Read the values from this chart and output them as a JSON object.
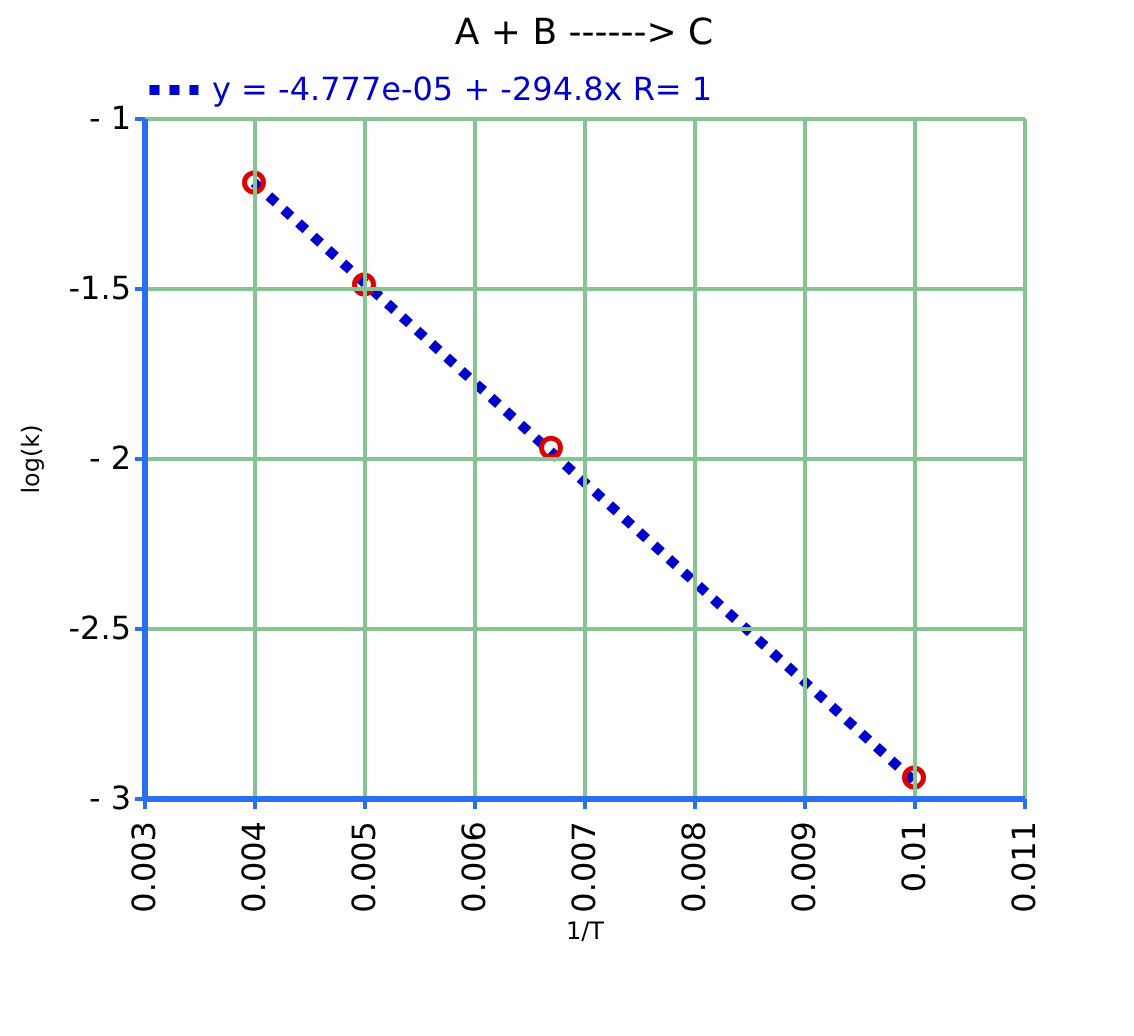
{
  "chart_data": {
    "type": "scatter",
    "title": "A  +  B  ------> C",
    "xlabel": "1/T",
    "ylabel": "log(k)",
    "xlim": [
      0.003,
      0.011
    ],
    "xticks": [
      0.003,
      0.004,
      0.005,
      0.006,
      0.007,
      0.008,
      0.009,
      0.01,
      0.011
    ],
    "ylim": [
      -3,
      -1
    ],
    "yticks": [
      {
        "value": -1,
        "label": "- 1"
      },
      -1.5,
      {
        "value": -2,
        "label": "- 2"
      },
      -2.5,
      {
        "value": -3,
        "label": "- 3"
      }
    ],
    "grid": true,
    "legend": "top",
    "series": [
      {
        "type": "line",
        "name": "y = -4.777e-05 + -294.8x R= 1",
        "color": "#0000cc",
        "x": [
          0.004,
          0.01
        ],
        "values": [
          -1.19,
          -2.95
        ],
        "line_style": "dotted",
        "marker": "none"
      },
      {
        "color": "#dd0000",
        "x": [
          0.004,
          0.005,
          0.0067,
          0.01
        ],
        "values": [
          -1.19,
          -1.49,
          -1.97,
          -2.94
        ],
        "marker": "circle"
      }
    ]
  }
}
